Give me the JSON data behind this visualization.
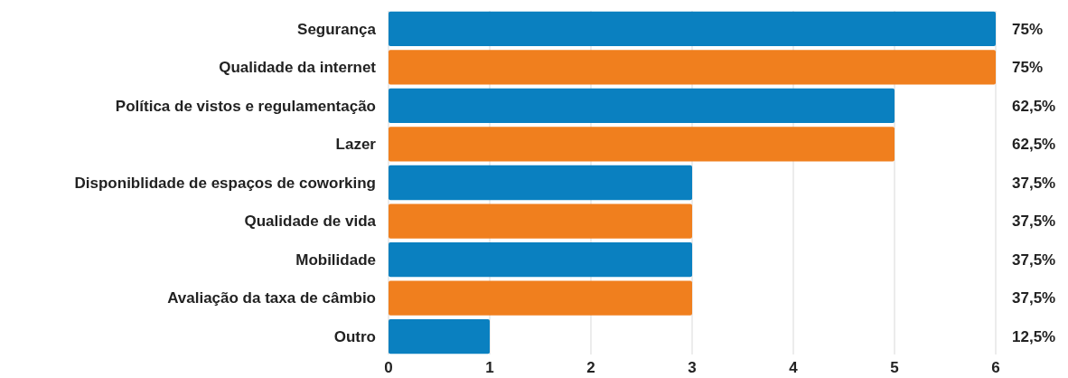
{
  "chart_data": {
    "type": "bar",
    "orientation": "horizontal",
    "categories": [
      "Segurança",
      "Qualidade da internet",
      "Política de vistos e regulamentação",
      "Lazer",
      "Disponiblidade de espaços de coworking",
      "Qualidade de vida",
      "Mobilidade",
      "Avaliação da taxa de câmbio",
      "Outro"
    ],
    "values": [
      6,
      6,
      5,
      5,
      3,
      3,
      3,
      3,
      1
    ],
    "colors": [
      "#0a80c0",
      "#f07f1e",
      "#0a80c0",
      "#f07f1e",
      "#0a80c0",
      "#f07f1e",
      "#0a80c0",
      "#f07f1e",
      "#0a80c0"
    ],
    "annotations": [
      "75%",
      "75%",
      "62,5%",
      "62,5%",
      "37,5%",
      "37,5%",
      "37,5%",
      "37,5%",
      "12,5%"
    ],
    "xlim": [
      0,
      6
    ],
    "xticks": [
      0,
      1,
      2,
      3,
      4,
      5,
      6
    ],
    "grid": "x"
  }
}
